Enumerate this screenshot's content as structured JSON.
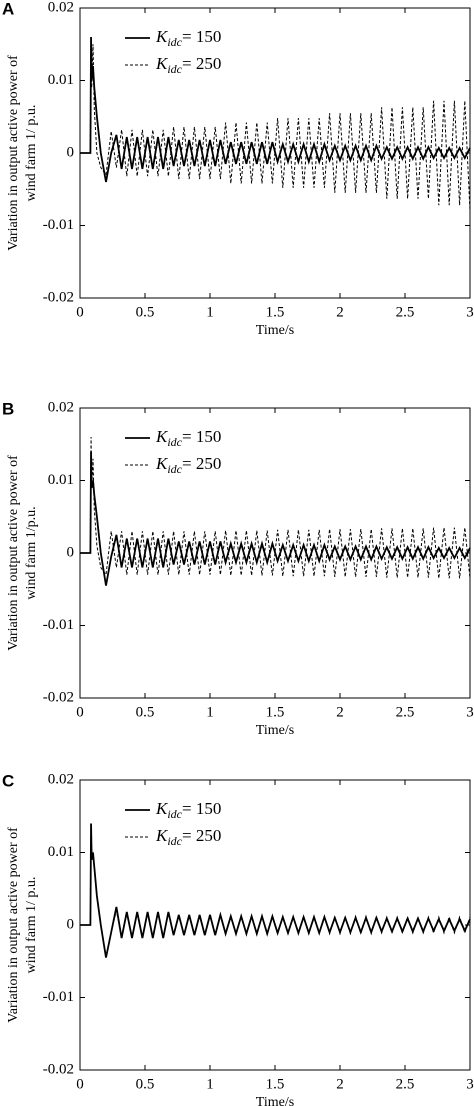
{
  "chart_data": [
    {
      "type": "line",
      "label": "A",
      "y_label": [
        "Variation in output active power of",
        "wind farm 1/ p.u."
      ],
      "x_label": "Time/s",
      "legend_symbol": {
        "base": "K",
        "sub": "idc"
      },
      "xlim": [
        0,
        3
      ],
      "xticks": [
        0,
        0.5,
        1,
        1.5,
        2,
        2.5,
        3
      ],
      "ylim": [
        -0.02,
        0.02
      ],
      "yticks": [
        -0.02,
        -0.01,
        0,
        0.01,
        0.02
      ],
      "x": [
        0,
        0.08,
        0.085,
        0.09,
        0.1,
        0.11,
        0.13,
        0.16,
        0.2,
        0.24,
        0.28,
        0.32,
        0.36,
        0.4,
        0.44,
        0.48,
        0.52,
        0.56,
        0.6,
        0.64,
        0.68,
        0.72,
        0.76,
        0.8,
        0.84,
        0.88,
        0.92,
        0.96,
        1,
        1.04,
        1.08,
        1.12,
        1.16,
        1.2,
        1.24,
        1.28,
        1.32,
        1.36,
        1.4,
        1.44,
        1.48,
        1.52,
        1.56,
        1.6,
        1.64,
        1.68,
        1.72,
        1.76,
        1.8,
        1.84,
        1.88,
        1.92,
        1.96,
        2,
        2.04,
        2.08,
        2.12,
        2.16,
        2.2,
        2.24,
        2.28,
        2.32,
        2.36,
        2.4,
        2.44,
        2.48,
        2.52,
        2.56,
        2.6,
        2.64,
        2.68,
        2.72,
        2.76,
        2.8,
        2.84,
        2.88,
        2.92,
        2.96,
        3
      ],
      "series": [
        {
          "name": "= 150",
          "color": "#000",
          "dash": "solid",
          "values": [
            0,
            0,
            0.016,
            0.01,
            0.012,
            0.009,
            0.005,
            0,
            -0.004,
            0,
            0.0025,
            -0.0022,
            0.0022,
            -0.0022,
            0.0022,
            -0.0022,
            0.0022,
            -0.0022,
            0.0022,
            -0.0022,
            0.0022,
            -0.0018,
            0.0018,
            -0.0018,
            0.0018,
            -0.0018,
            0.0018,
            -0.0018,
            0.0018,
            -0.0018,
            0.0018,
            -0.0015,
            0.0015,
            -0.0015,
            0.0015,
            -0.0015,
            0.0015,
            -0.0015,
            0.0015,
            -0.0015,
            0.0015,
            -0.0012,
            0.0012,
            -0.0012,
            0.0012,
            -0.0012,
            0.0012,
            -0.0012,
            0.0012,
            -0.0012,
            0.0012,
            -0.001,
            0.001,
            -0.001,
            0.001,
            -0.001,
            0.001,
            -0.001,
            0.001,
            -0.001,
            0.001,
            -0.0008,
            0.0008,
            -0.0008,
            0.0008,
            -0.0008,
            0.0008,
            -0.0008,
            0.0008,
            -0.0008,
            0.0008,
            -0.0007,
            0.0007,
            -0.0007,
            0.0007,
            -0.0007,
            0.0007,
            -0.0007,
            0.0007
          ]
        },
        {
          "name": "= 250",
          "color": "#000",
          "dash": "dashed",
          "values": [
            0,
            0,
            0.013,
            0.009,
            0.015,
            0.006,
            0,
            -0.002,
            -0.003,
            0.003,
            -0.002,
            0.0032,
            -0.0032,
            0.0032,
            -0.0032,
            0.0032,
            -0.0032,
            0.0032,
            -0.0032,
            0.0032,
            -0.0032,
            0.0036,
            -0.0036,
            0.0036,
            -0.0036,
            0.0036,
            -0.0036,
            0.0036,
            -0.0036,
            0.0036,
            -0.0036,
            0.0042,
            -0.0042,
            0.0042,
            -0.0042,
            0.0042,
            -0.0042,
            0.0042,
            -0.0042,
            0.0042,
            -0.0042,
            0.0048,
            -0.0048,
            0.0048,
            -0.0048,
            0.0048,
            -0.0048,
            0.0048,
            -0.0048,
            0.0048,
            -0.0048,
            0.0055,
            -0.0055,
            0.0055,
            -0.0055,
            0.0055,
            -0.0055,
            0.0055,
            -0.0055,
            0.0055,
            -0.0055,
            0.0063,
            -0.0063,
            0.0063,
            -0.0063,
            0.0063,
            -0.0063,
            0.0063,
            -0.0063,
            0.0063,
            -0.0063,
            0.0072,
            -0.0072,
            0.0072,
            -0.0072,
            0.0072,
            -0.0072,
            0.0072,
            -0.008
          ]
        }
      ]
    },
    {
      "type": "line",
      "label": "B",
      "y_label": [
        "Variation in output active power of",
        "wind farm 1/p.u."
      ],
      "x_label": "Time/s",
      "legend_symbol": {
        "base": "K",
        "sub": "idc"
      },
      "xlim": [
        0,
        3
      ],
      "xticks": [
        0,
        0.5,
        1,
        1.5,
        2,
        2.5,
        3
      ],
      "ylim": [
        -0.02,
        0.02
      ],
      "yticks": [
        -0.02,
        -0.01,
        0,
        0.01,
        0.02
      ],
      "x": [
        0,
        0.08,
        0.085,
        0.09,
        0.1,
        0.11,
        0.13,
        0.16,
        0.2,
        0.24,
        0.28,
        0.32,
        0.36,
        0.4,
        0.44,
        0.48,
        0.52,
        0.56,
        0.6,
        0.64,
        0.68,
        0.72,
        0.76,
        0.8,
        0.84,
        0.88,
        0.92,
        0.96,
        1,
        1.04,
        1.08,
        1.12,
        1.16,
        1.2,
        1.24,
        1.28,
        1.32,
        1.36,
        1.4,
        1.44,
        1.48,
        1.52,
        1.56,
        1.6,
        1.64,
        1.68,
        1.72,
        1.76,
        1.8,
        1.84,
        1.88,
        1.92,
        1.96,
        2,
        2.04,
        2.08,
        2.12,
        2.16,
        2.2,
        2.24,
        2.28,
        2.32,
        2.36,
        2.4,
        2.44,
        2.48,
        2.52,
        2.56,
        2.6,
        2.64,
        2.68,
        2.72,
        2.76,
        2.8,
        2.84,
        2.88,
        2.92,
        2.96,
        3
      ],
      "series": [
        {
          "name": "= 150",
          "color": "#000",
          "dash": "solid",
          "values": [
            0,
            0,
            0.014,
            0.009,
            0.01,
            0.008,
            0.005,
            0,
            -0.0045,
            -0.0005,
            0.0025,
            -0.002,
            0.002,
            -0.002,
            0.002,
            -0.002,
            0.002,
            -0.002,
            0.002,
            -0.002,
            0.002,
            -0.0016,
            0.0016,
            -0.0016,
            0.0016,
            -0.0016,
            0.0016,
            -0.0016,
            0.0016,
            -0.0016,
            0.0016,
            -0.0013,
            0.0013,
            -0.0013,
            0.0013,
            -0.0013,
            0.0013,
            -0.0013,
            0.0013,
            -0.0013,
            0.0013,
            -0.0011,
            0.0011,
            -0.0011,
            0.0011,
            -0.0011,
            0.0011,
            -0.0011,
            0.0011,
            -0.0011,
            0.0011,
            -0.0009,
            0.0009,
            -0.0009,
            0.0009,
            -0.0009,
            0.0009,
            -0.0009,
            0.0009,
            -0.0009,
            0.0009,
            -0.0008,
            0.0008,
            -0.0008,
            0.0008,
            -0.0008,
            0.0008,
            -0.0008,
            0.0008,
            -0.0008,
            0.0008,
            -0.0007,
            0.0007,
            -0.0007,
            0.0007,
            -0.0007,
            0.0007,
            -0.0007,
            0.0007
          ]
        },
        {
          "name": "= 250",
          "color": "#000",
          "dash": "dashed",
          "values": [
            0,
            0,
            0.016,
            0.009,
            0.013,
            0.006,
            0.001,
            -0.002,
            -0.003,
            0.003,
            -0.002,
            0.003,
            -0.003,
            0.003,
            -0.003,
            0.003,
            -0.003,
            0.003,
            -0.003,
            0.003,
            -0.003,
            0.003,
            -0.003,
            0.003,
            -0.003,
            0.003,
            -0.003,
            0.003,
            -0.003,
            0.003,
            -0.003,
            0.0031,
            -0.0031,
            0.0031,
            -0.0031,
            0.0031,
            -0.0031,
            0.0031,
            -0.0031,
            0.0031,
            -0.0031,
            0.0032,
            -0.0032,
            0.0032,
            -0.0032,
            0.0032,
            -0.0032,
            0.0032,
            -0.0032,
            0.0032,
            -0.0032,
            0.0033,
            -0.0033,
            0.0033,
            -0.0033,
            0.0033,
            -0.0033,
            0.0033,
            -0.0033,
            0.0033,
            -0.0033,
            0.0034,
            -0.0034,
            0.0034,
            -0.0034,
            0.0034,
            -0.0034,
            0.0034,
            -0.0034,
            0.0034,
            -0.0034,
            0.0035,
            -0.0035,
            0.0035,
            -0.0035,
            0.0035,
            -0.0035,
            0.0035,
            -0.0035
          ]
        }
      ]
    },
    {
      "type": "line",
      "label": "C",
      "y_label": [
        "Variation in output active power of",
        "wind farm 1/ p.u."
      ],
      "x_label": "Time/s",
      "legend_symbol": {
        "base": "K",
        "sub": "idc"
      },
      "xlim": [
        0,
        3
      ],
      "xticks": [
        0,
        0.5,
        1,
        1.5,
        2,
        2.5,
        3
      ],
      "ylim": [
        -0.02,
        0.02
      ],
      "yticks": [
        -0.02,
        -0.01,
        0,
        0.01,
        0.02
      ],
      "x": [
        0,
        0.08,
        0.085,
        0.09,
        0.1,
        0.11,
        0.13,
        0.16,
        0.2,
        0.24,
        0.28,
        0.32,
        0.36,
        0.4,
        0.44,
        0.48,
        0.52,
        0.56,
        0.6,
        0.64,
        0.68,
        0.72,
        0.76,
        0.8,
        0.84,
        0.88,
        0.92,
        0.96,
        1,
        1.04,
        1.08,
        1.12,
        1.16,
        1.2,
        1.24,
        1.28,
        1.32,
        1.36,
        1.4,
        1.44,
        1.48,
        1.52,
        1.56,
        1.6,
        1.64,
        1.68,
        1.72,
        1.76,
        1.8,
        1.84,
        1.88,
        1.92,
        1.96,
        2,
        2.04,
        2.08,
        2.12,
        2.16,
        2.2,
        2.24,
        2.28,
        2.32,
        2.36,
        2.4,
        2.44,
        2.48,
        2.52,
        2.56,
        2.6,
        2.64,
        2.68,
        2.72,
        2.76,
        2.8,
        2.84,
        2.88,
        2.92,
        2.96,
        3
      ],
      "series": [
        {
          "name": "= 150",
          "color": "#000",
          "dash": "solid",
          "values": [
            0,
            0,
            0.014,
            0.009,
            0.01,
            0.008,
            0.004,
            0,
            -0.0045,
            -0.001,
            0.0025,
            -0.0018,
            0.0018,
            -0.0018,
            0.0018,
            -0.0018,
            0.0018,
            -0.0018,
            0.0018,
            -0.0018,
            0.0018,
            -0.0014,
            0.0014,
            -0.0014,
            0.0014,
            -0.0014,
            0.0014,
            -0.0014,
            0.0014,
            -0.0014,
            0.0014,
            -0.0012,
            0.0012,
            -0.0012,
            0.0012,
            -0.0012,
            0.0012,
            -0.0012,
            0.0012,
            -0.0012,
            0.0012,
            -0.0011,
            0.0011,
            -0.0011,
            0.0011,
            -0.0011,
            0.0011,
            -0.0011,
            0.0011,
            -0.0011,
            0.0011,
            -0.001,
            0.001,
            -0.001,
            0.001,
            -0.001,
            0.001,
            -0.001,
            0.001,
            -0.001,
            0.001,
            -0.0009,
            0.0009,
            -0.0009,
            0.0009,
            -0.0009,
            0.0009,
            -0.0009,
            0.0009,
            -0.0009,
            0.0009,
            -0.0008,
            0.0008,
            -0.0008,
            0.0008,
            -0.0008,
            0.0008,
            -0.0008,
            0.0008
          ]
        },
        {
          "name": "= 250",
          "color": "#000",
          "dash": "dashed",
          "values": [
            0,
            0,
            0.014,
            0.009,
            0.01,
            0.008,
            0.004,
            0,
            -0.0043,
            -0.001,
            0.002,
            -0.0016,
            0.0016,
            -0.0016,
            0.0016,
            -0.0016,
            0.0016,
            -0.0016,
            0.0016,
            -0.0016,
            0.0016,
            -0.0014,
            0.0014,
            -0.0014,
            0.0014,
            -0.0014,
            0.0014,
            -0.0014,
            0.0014,
            -0.0014,
            0.0014,
            -0.0013,
            0.0013,
            -0.0013,
            0.0013,
            -0.0013,
            0.0013,
            -0.0013,
            0.0013,
            -0.0013,
            0.0013,
            -0.0012,
            0.0012,
            -0.0012,
            0.0012,
            -0.0012,
            0.0012,
            -0.0012,
            0.0012,
            -0.0012,
            0.0012,
            -0.0012,
            0.0012,
            -0.0012,
            0.0012,
            -0.0012,
            0.0012,
            -0.0012,
            0.0012,
            -0.0012,
            0.0012,
            -0.0011,
            0.0011,
            -0.0011,
            0.0011,
            -0.0011,
            0.0011,
            -0.0011,
            0.0011,
            -0.0011,
            0.0011,
            -0.0011,
            0.0011,
            -0.0011,
            0.0011,
            -0.0011,
            0.0011,
            -0.0011,
            0.0011
          ]
        }
      ]
    }
  ]
}
